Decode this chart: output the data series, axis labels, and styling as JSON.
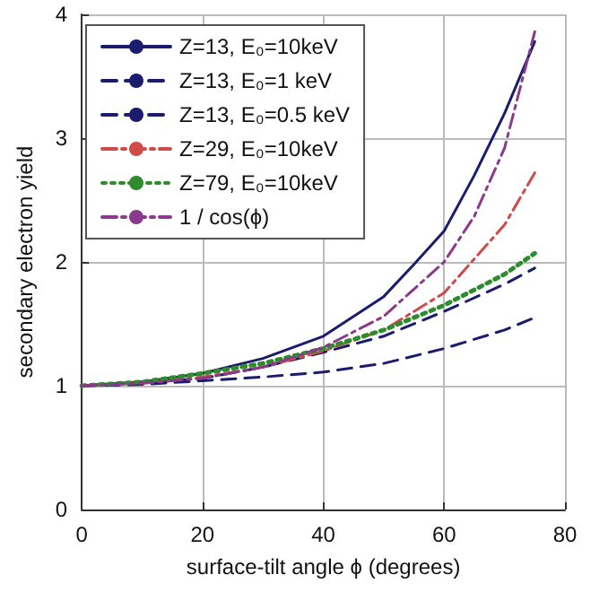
{
  "chart_data": {
    "type": "line",
    "xlabel": "surface-tilt angle ϕ (degrees)",
    "ylabel": "secondary electron yield",
    "xlim": [
      0,
      80
    ],
    "xticks": [
      0,
      20,
      40,
      60,
      80
    ],
    "ylim": [
      0,
      4
    ],
    "yticks": [
      0,
      1,
      2,
      3,
      4
    ],
    "grid": true,
    "legend": "top left",
    "marker": "none",
    "series": [
      {
        "name": "Z=13, E₀=10keV",
        "color": "#1c1c6e",
        "line_style": "solid",
        "x": [
          0,
          10,
          20,
          30,
          40,
          50,
          55,
          60,
          65,
          70,
          75
        ],
        "values": [
          1,
          1.03,
          1.1,
          1.22,
          1.4,
          1.72,
          1.98,
          2.25,
          2.7,
          3.2,
          3.78
        ]
      },
      {
        "name": "Z=13, E₀=1 keV",
        "color": "#1c1c6e",
        "line_style": "dashed",
        "x": [
          0,
          10,
          20,
          30,
          40,
          50,
          60,
          70,
          75
        ],
        "values": [
          1,
          1.02,
          1.06,
          1.15,
          1.27,
          1.4,
          1.6,
          1.82,
          1.95
        ]
      },
      {
        "name": "Z=13, E₀=0.5 keV",
        "color": "#1c1c6e",
        "line_style": "dashed",
        "x": [
          0,
          10,
          20,
          30,
          40,
          50,
          60,
          70,
          75
        ],
        "values": [
          1,
          1.01,
          1.04,
          1.07,
          1.11,
          1.18,
          1.3,
          1.45,
          1.55
        ]
      },
      {
        "name": "Z=29, E₀=10keV",
        "color": "#d04a4a",
        "line_style": "dashdot",
        "x": [
          0,
          10,
          20,
          30,
          40,
          50,
          60,
          70,
          75
        ],
        "values": [
          1,
          1.02,
          1.07,
          1.15,
          1.28,
          1.45,
          1.75,
          2.3,
          2.72
        ]
      },
      {
        "name": "Z=79, E₀=10keV",
        "color": "#2e8b2e",
        "line_style": "dotted",
        "x": [
          0,
          10,
          20,
          30,
          40,
          50,
          60,
          70,
          75
        ],
        "values": [
          1,
          1.03,
          1.1,
          1.18,
          1.3,
          1.45,
          1.65,
          1.9,
          2.07
        ]
      },
      {
        "name": "1 / cos(ϕ)",
        "color": "#8b3a8b",
        "line_style": "dashdot",
        "x": [
          0,
          10,
          20,
          30,
          40,
          50,
          60,
          65,
          70,
          75
        ],
        "values": [
          1,
          1.02,
          1.06,
          1.15,
          1.31,
          1.56,
          2,
          2.37,
          2.92,
          3.86
        ]
      }
    ]
  }
}
